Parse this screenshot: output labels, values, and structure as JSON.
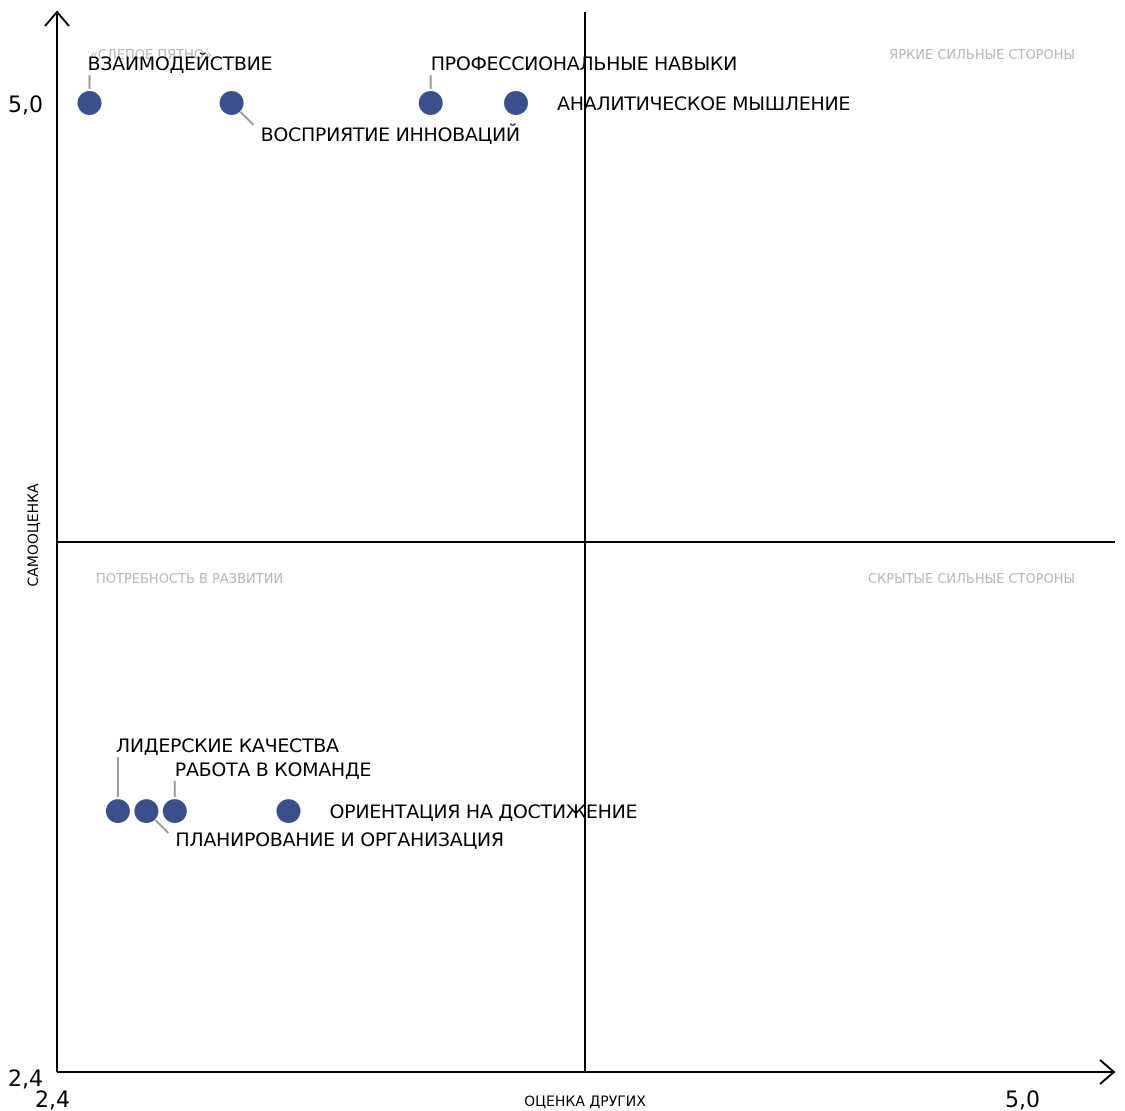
{
  "chart_data": {
    "type": "scatter",
    "xlabel": "ОЦЕНКА ДРУГИХ",
    "ylabel": "САМООЦЕНКА",
    "xlim": [
      2.4,
      5.0
    ],
    "ylim": [
      2.4,
      5.0
    ],
    "x_tick_labels": [
      "2,4",
      "5,0"
    ],
    "y_tick_labels": [
      "2,4",
      "5,0"
    ],
    "grid": false,
    "point_color": "#3b4f8a",
    "quadrant_labels": {
      "top_left": "«СЛЕПОЕ ПЯТНО»",
      "top_right": "ЯРКИЕ СИЛЬНЫЕ СТОРОНЫ",
      "bottom_left": "ПОТРЕБНОСТЬ В РАЗВИТИИ",
      "bottom_right": "СКРЫТЫЕ СИЛЬНЫЕ СТОРОНЫ"
    },
    "points": [
      {
        "label": "ВЗАИМОДЕЙСТВИЕ",
        "x": 2.48,
        "y": 5.0
      },
      {
        "label": "ВОСПРИЯТИЕ ИННОВАЦИЙ",
        "x": 2.83,
        "y": 5.0
      },
      {
        "label": "ПРОФЕССИОНАЛЬНЫЕ НАВЫКИ",
        "x": 3.32,
        "y": 5.0
      },
      {
        "label": "АНАЛИТИЧЕСКОЕ МЫШЛЕНИЕ",
        "x": 3.53,
        "y": 5.0
      },
      {
        "label": "ЛИДЕРСКИЕ КАЧЕСТВА",
        "x": 2.55,
        "y": 3.1
      },
      {
        "label": "ПЛАНИРОВАНИЕ И ОРГАНИЗАЦИЯ",
        "x": 2.62,
        "y": 3.1
      },
      {
        "label": "РАБОТА В КОМАНДЕ",
        "x": 2.69,
        "y": 3.1
      },
      {
        "label": "ОРИЕНТАЦИЯ НА ДОСТИЖЕНИЕ",
        "x": 2.97,
        "y": 3.1
      }
    ]
  }
}
